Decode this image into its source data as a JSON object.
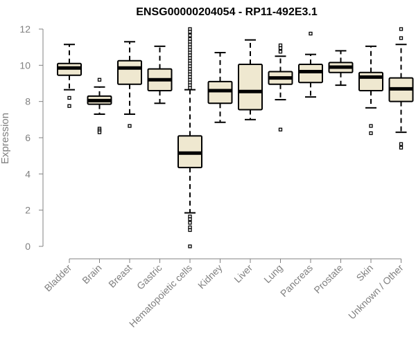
{
  "chart_data": {
    "type": "boxplot",
    "title": "ENSG00000204054 - RP11-492E3.1",
    "xlabel": "",
    "ylabel": "Expression",
    "ylim": [
      0,
      12
    ],
    "yticks": [
      "0",
      "2",
      "4",
      "6",
      "8",
      "10",
      "12"
    ],
    "grid": false,
    "colors": {
      "box_fill": "#efe8d0",
      "stroke": "#000000",
      "axis": "#808080",
      "title": "#000000"
    },
    "categories": [
      "Bladder",
      "Brain",
      "Breast",
      "Gastric",
      "Hematopoietic cells",
      "Kidney",
      "Liver",
      "Lung",
      "Pancreas",
      "Prostate",
      "Skin",
      "Unknown / Other"
    ],
    "boxes": [
      {
        "name": "Bladder",
        "whisker_low": 8.65,
        "q1": 9.45,
        "median": 9.85,
        "q3": 10.1,
        "whisker_high": 11.15,
        "outliers": [
          8.2,
          7.75
        ]
      },
      {
        "name": "Brain",
        "whisker_low": 7.3,
        "q1": 7.85,
        "median": 8.05,
        "q3": 8.3,
        "whisker_high": 8.8,
        "outliers": [
          9.2,
          6.5,
          6.4,
          6.3
        ]
      },
      {
        "name": "Breast",
        "whisker_low": 7.3,
        "q1": 8.95,
        "median": 9.85,
        "q3": 10.25,
        "whisker_high": 11.3,
        "outliers": [
          6.65
        ]
      },
      {
        "name": "Gastric",
        "whisker_low": 7.9,
        "q1": 8.6,
        "median": 9.2,
        "q3": 9.8,
        "whisker_high": 11.05,
        "outliers": []
      },
      {
        "name": "Hematopoietic cells",
        "whisker_low": 1.85,
        "q1": 4.35,
        "median": 5.15,
        "q3": 6.1,
        "whisker_high": 8.65,
        "outliers": [
          12.0,
          11.85,
          11.65,
          11.45,
          11.3,
          11.15,
          11.0,
          10.85,
          10.7,
          10.55,
          10.4,
          10.25,
          10.1,
          9.95,
          9.8,
          9.65,
          9.5,
          9.35,
          9.2,
          9.05,
          8.9,
          8.75,
          1.65,
          1.5,
          1.3,
          1.05,
          0.9,
          0.0
        ]
      },
      {
        "name": "Kidney",
        "whisker_low": 6.85,
        "q1": 7.9,
        "median": 8.6,
        "q3": 9.1,
        "whisker_high": 10.7,
        "outliers": []
      },
      {
        "name": "Liver",
        "whisker_low": 7.0,
        "q1": 7.55,
        "median": 8.55,
        "q3": 10.05,
        "whisker_high": 11.4,
        "outliers": []
      },
      {
        "name": "Lung",
        "whisker_low": 8.1,
        "q1": 8.95,
        "median": 9.3,
        "q3": 9.65,
        "whisker_high": 10.5,
        "outliers": [
          11.1,
          10.95,
          10.75,
          6.45
        ]
      },
      {
        "name": "Pancreas",
        "whisker_low": 8.25,
        "q1": 9.05,
        "median": 9.65,
        "q3": 10.05,
        "whisker_high": 10.6,
        "outliers": [
          11.75
        ]
      },
      {
        "name": "Prostate",
        "whisker_low": 8.9,
        "q1": 9.6,
        "median": 9.9,
        "q3": 10.15,
        "whisker_high": 10.8,
        "outliers": []
      },
      {
        "name": "Skin",
        "whisker_low": 7.65,
        "q1": 8.6,
        "median": 9.35,
        "q3": 9.6,
        "whisker_high": 11.05,
        "outliers": [
          6.65,
          6.25
        ]
      },
      {
        "name": "Unknown / Other",
        "whisker_low": 6.3,
        "q1": 8.0,
        "median": 8.7,
        "q3": 9.3,
        "whisker_high": 11.15,
        "outliers": [
          12.0,
          11.5,
          5.65,
          5.45
        ]
      }
    ]
  }
}
